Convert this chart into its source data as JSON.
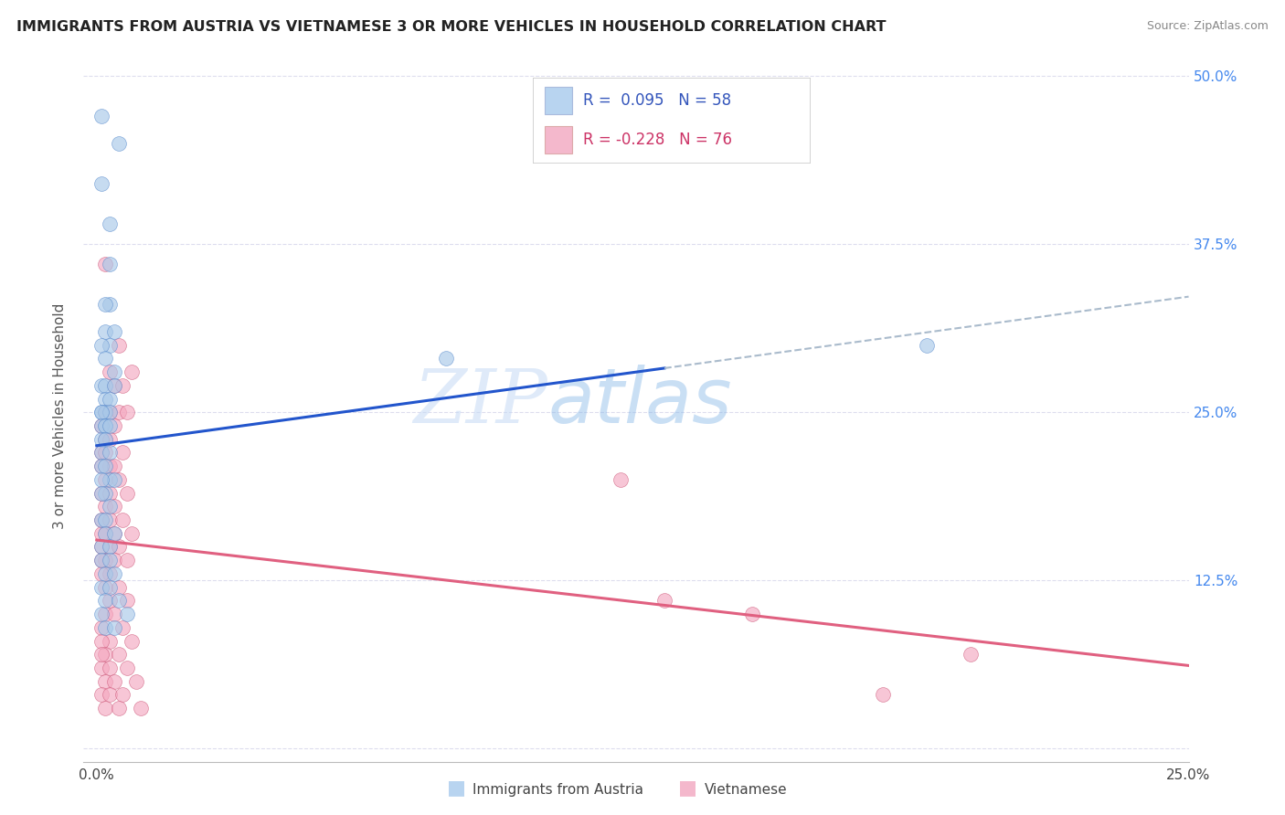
{
  "title": "IMMIGRANTS FROM AUSTRIA VS VIETNAMESE 3 OR MORE VEHICLES IN HOUSEHOLD CORRELATION CHART",
  "source": "Source: ZipAtlas.com",
  "ylabel": "3 or more Vehicles in Household",
  "xlim": [
    0.0,
    0.25
  ],
  "ylim": [
    0.0,
    0.5
  ],
  "xticks": [
    0.0,
    0.05,
    0.1,
    0.15,
    0.2,
    0.25
  ],
  "yticks": [
    0.0,
    0.125,
    0.25,
    0.375,
    0.5
  ],
  "xtick_labels": [
    "0.0%",
    "",
    "",
    "",
    "",
    "25.0%"
  ],
  "ytick_labels_right": [
    "",
    "12.5%",
    "25.0%",
    "37.5%",
    "50.0%"
  ],
  "blue_R": 0.095,
  "blue_N": 58,
  "pink_R": -0.228,
  "pink_N": 76,
  "blue_scatter_color": "#a8c8e8",
  "blue_edge_color": "#5588cc",
  "blue_line_color": "#2255cc",
  "blue_dash_color": "#aabbcc",
  "pink_scatter_color": "#f4a8c0",
  "pink_edge_color": "#cc5577",
  "pink_line_color": "#e06080",
  "legend_blue_fill": "#b8d4f0",
  "legend_pink_fill": "#f4b8cc",
  "legend_text_dark": "#333355",
  "legend_text_blue": "#3355bb",
  "right_tick_color": "#4488ee",
  "grid_color": "#ddddee",
  "watermark_text": "ZIPatlas",
  "watermark_color": "#c8ddf8",
  "bg_color": "#ffffff"
}
